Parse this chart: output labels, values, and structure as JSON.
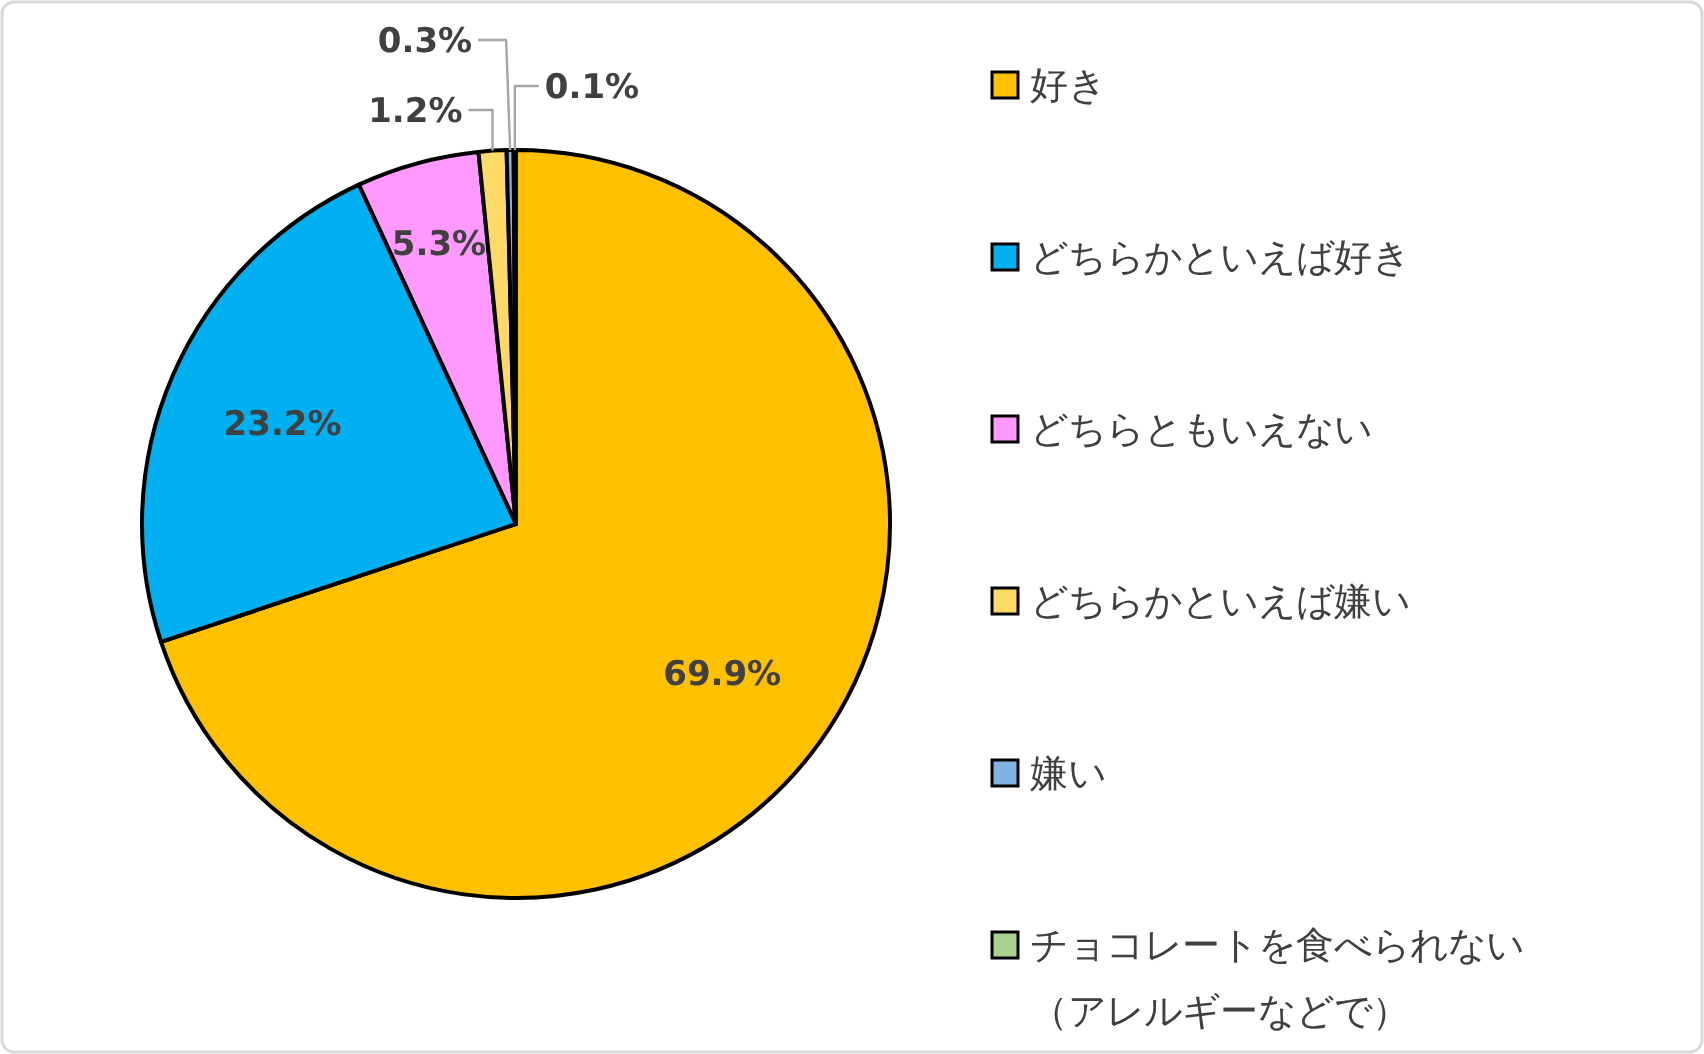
{
  "chart_data": {
    "type": "pie",
    "categories": [
      "好き",
      "どちらかといえば好き",
      "どちらともいえない",
      "どちらかといえば嫌い",
      "嫌い",
      "チョコレートを食べられない（アレルギーなどで）"
    ],
    "values": [
      69.9,
      23.2,
      5.3,
      1.2,
      0.3,
      0.1
    ],
    "colors": [
      "#ffc000",
      "#00b0f0",
      "#ff99ff",
      "#ffd966",
      "#7fb2e0",
      "#a9d18e"
    ],
    "value_labels": [
      "69.9%",
      "23.2%",
      "5.3%",
      "1.2%",
      "0.3%",
      "0.1%"
    ],
    "legend": "right"
  }
}
